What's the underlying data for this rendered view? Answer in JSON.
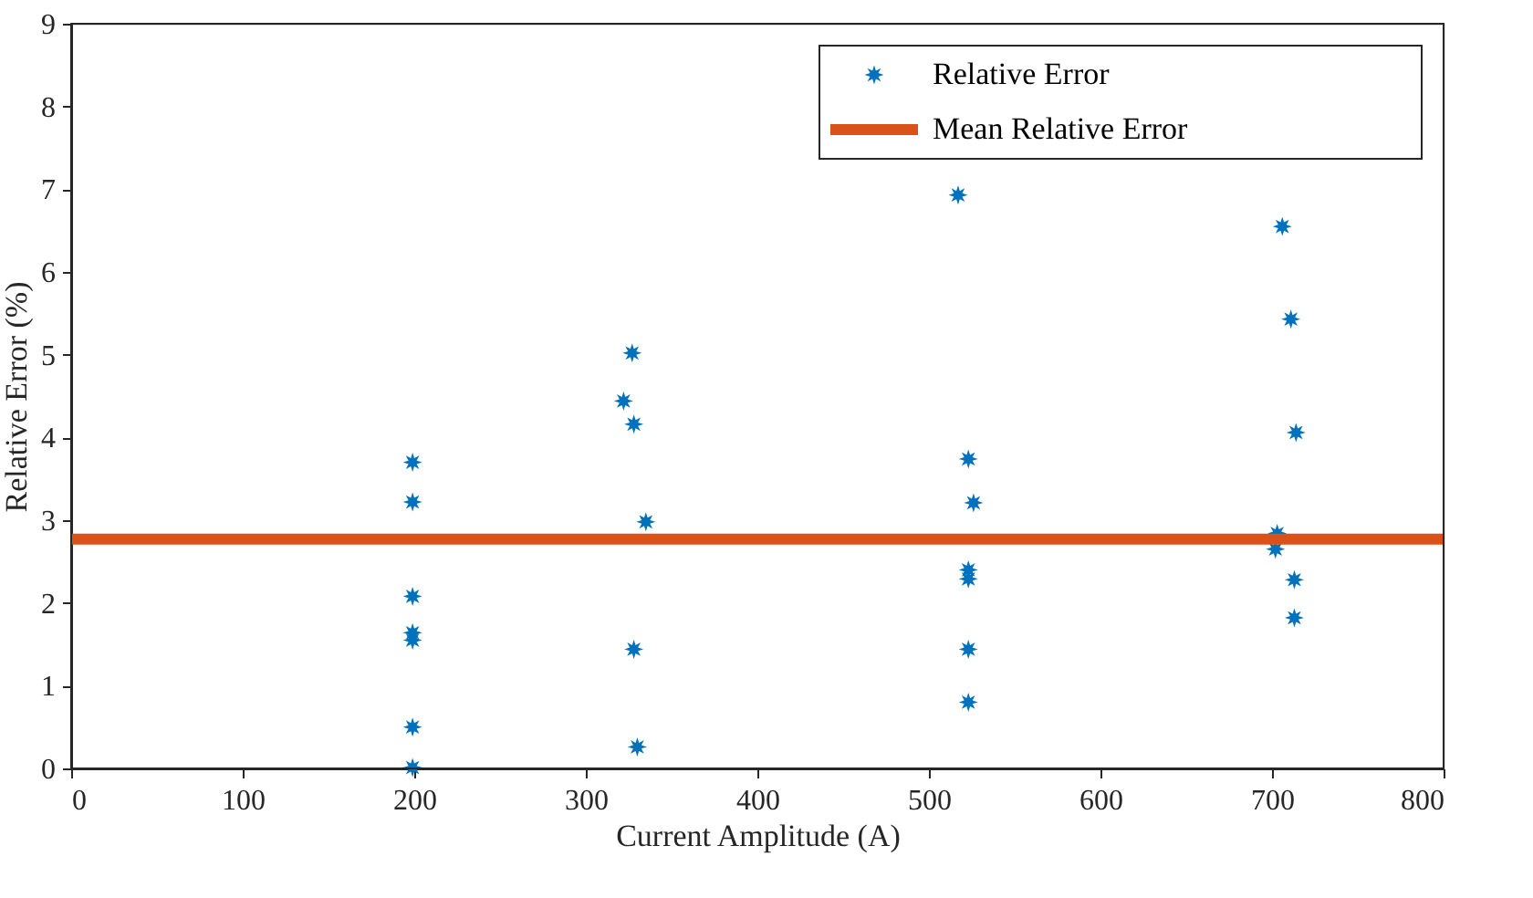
{
  "chart_data": {
    "type": "scatter",
    "xlabel": "Current Amplitude (A)",
    "ylabel": "Relative Error (%)",
    "xlim": [
      0,
      800
    ],
    "xticks": [
      0,
      100,
      200,
      300,
      400,
      500,
      600,
      700,
      800
    ],
    "ylim": [
      0,
      9
    ],
    "yticks": [
      0,
      1,
      2,
      3,
      4,
      5,
      6,
      7,
      8,
      9
    ],
    "grid": false,
    "legend": "top right",
    "series": [
      {
        "name": "Relative Error",
        "color": "#0072bd",
        "marker": "star",
        "x": [
          199,
          199,
          199,
          199,
          199,
          199,
          199,
          327,
          322,
          328,
          335,
          328,
          330,
          517,
          523,
          526,
          523,
          523,
          523,
          523,
          706,
          711,
          714,
          703,
          702,
          713,
          713
        ],
        "values": [
          3.7,
          3.22,
          2.08,
          1.64,
          1.55,
          0.5,
          0.01,
          5.02,
          4.44,
          4.16,
          2.98,
          1.44,
          0.26,
          6.93,
          3.74,
          3.21,
          2.4,
          2.29,
          1.44,
          0.8,
          6.55,
          5.43,
          4.06,
          2.84,
          2.65,
          2.28,
          1.82
        ]
      },
      {
        "name": "Mean Relative Error",
        "color": "#d95319",
        "type": "line",
        "marker": "none",
        "x": [
          0,
          800
        ],
        "values": [
          2.77,
          2.77
        ]
      }
    ]
  }
}
